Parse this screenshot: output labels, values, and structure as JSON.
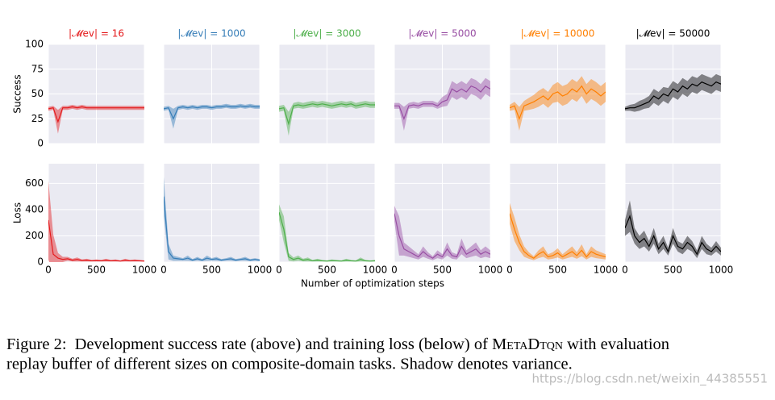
{
  "chart_data": [
    {
      "type": "line",
      "title": "|𝓜ev| = 16",
      "ylabel": "Success",
      "color": "#e41a1c",
      "xlim": [
        0,
        1000
      ],
      "xticks": [
        0,
        500,
        1000
      ],
      "ylim": [
        0,
        100
      ],
      "yticks": [
        0,
        25,
        50,
        75,
        100
      ],
      "x": [
        0,
        50,
        100,
        150,
        200,
        250,
        300,
        350,
        400,
        450,
        500,
        550,
        600,
        650,
        700,
        750,
        800,
        850,
        900,
        950,
        1000
      ],
      "values": [
        35,
        36,
        22,
        36,
        36,
        37,
        36,
        37,
        36,
        36,
        36,
        36,
        36,
        36,
        36,
        36,
        36,
        36,
        36,
        36,
        36
      ],
      "errors": [
        2,
        2,
        12,
        2,
        2,
        2,
        2,
        2,
        2,
        2,
        2,
        2,
        2,
        2,
        2,
        2,
        2,
        2,
        2,
        2,
        2
      ]
    },
    {
      "type": "line",
      "title": "|𝓜ev| = 1000",
      "color": "#377eb8",
      "xlim": [
        0,
        1000
      ],
      "xticks": [
        0,
        500,
        1000
      ],
      "ylim": [
        0,
        100
      ],
      "yticks": [
        0,
        25,
        50,
        75,
        100
      ],
      "x": [
        0,
        50,
        100,
        150,
        200,
        250,
        300,
        350,
        400,
        450,
        500,
        550,
        600,
        650,
        700,
        750,
        800,
        850,
        900,
        950,
        1000
      ],
      "values": [
        35,
        36,
        25,
        36,
        37,
        36,
        37,
        36,
        37,
        37,
        36,
        37,
        37,
        38,
        37,
        37,
        38,
        37,
        38,
        37,
        37
      ],
      "errors": [
        2,
        2,
        10,
        2,
        2,
        2,
        2,
        2,
        2,
        2,
        2,
        2,
        2,
        2,
        2,
        2,
        2,
        2,
        2,
        2,
        2
      ]
    },
    {
      "type": "line",
      "title": "|𝓜ev| = 3000",
      "color": "#4daf4a",
      "xlim": [
        0,
        1000
      ],
      "xticks": [
        0,
        500,
        1000
      ],
      "ylim": [
        0,
        100
      ],
      "yticks": [
        0,
        25,
        50,
        75,
        100
      ],
      "x": [
        0,
        50,
        100,
        150,
        200,
        250,
        300,
        350,
        400,
        450,
        500,
        550,
        600,
        650,
        700,
        750,
        800,
        850,
        900,
        950,
        1000
      ],
      "values": [
        35,
        36,
        20,
        38,
        39,
        38,
        39,
        40,
        39,
        40,
        39,
        38,
        39,
        40,
        39,
        40,
        38,
        39,
        40,
        39,
        39
      ],
      "errors": [
        3,
        3,
        12,
        3,
        3,
        3,
        3,
        3,
        3,
        3,
        3,
        3,
        3,
        3,
        3,
        3,
        3,
        3,
        3,
        3,
        3
      ]
    },
    {
      "type": "line",
      "title": "|𝓜ev| = 5000",
      "color": "#984ea3",
      "xlim": [
        0,
        1000
      ],
      "xticks": [
        0,
        500,
        1000
      ],
      "ylim": [
        0,
        100
      ],
      "yticks": [
        0,
        25,
        50,
        75,
        100
      ],
      "x": [
        0,
        50,
        100,
        150,
        200,
        250,
        300,
        350,
        400,
        450,
        500,
        550,
        600,
        650,
        700,
        750,
        800,
        850,
        900,
        950,
        1000
      ],
      "values": [
        38,
        38,
        25,
        38,
        39,
        38,
        40,
        40,
        40,
        38,
        42,
        44,
        55,
        52,
        55,
        52,
        58,
        56,
        52,
        58,
        55
      ],
      "errors": [
        3,
        3,
        12,
        3,
        3,
        3,
        3,
        3,
        3,
        3,
        5,
        6,
        8,
        8,
        8,
        8,
        8,
        8,
        8,
        8,
        8
      ]
    },
    {
      "type": "line",
      "title": "|𝓜ev| = 10000",
      "color": "#ff7f00",
      "xlim": [
        0,
        1000
      ],
      "xticks": [
        0,
        500,
        1000
      ],
      "ylim": [
        0,
        100
      ],
      "yticks": [
        0,
        25,
        50,
        75,
        100
      ],
      "x": [
        0,
        50,
        100,
        150,
        200,
        250,
        300,
        350,
        400,
        450,
        500,
        550,
        600,
        650,
        700,
        750,
        800,
        850,
        900,
        950,
        1000
      ],
      "values": [
        36,
        38,
        25,
        38,
        40,
        42,
        45,
        48,
        44,
        50,
        52,
        48,
        50,
        55,
        52,
        58,
        50,
        55,
        52,
        48,
        52
      ],
      "errors": [
        3,
        4,
        12,
        5,
        6,
        7,
        8,
        8,
        8,
        9,
        10,
        10,
        10,
        10,
        10,
        10,
        10,
        10,
        10,
        10,
        10
      ]
    },
    {
      "type": "line",
      "title": "|𝓜ev| = 50000",
      "color": "#000000",
      "xlim": [
        0,
        1000
      ],
      "xticks": [
        0,
        500,
        1000
      ],
      "ylim": [
        0,
        100
      ],
      "yticks": [
        0,
        25,
        50,
        75,
        100
      ],
      "x": [
        0,
        50,
        100,
        150,
        200,
        250,
        300,
        350,
        400,
        450,
        500,
        550,
        600,
        650,
        700,
        750,
        800,
        850,
        900,
        950,
        1000
      ],
      "values": [
        35,
        36,
        36,
        38,
        40,
        42,
        48,
        45,
        50,
        48,
        55,
        52,
        58,
        55,
        60,
        58,
        62,
        60,
        58,
        62,
        60
      ],
      "errors": [
        2,
        3,
        4,
        5,
        5,
        6,
        7,
        7,
        7,
        8,
        8,
        8,
        8,
        8,
        8,
        8,
        8,
        8,
        8,
        8,
        8
      ]
    },
    {
      "type": "line",
      "ylabel": "Loss",
      "color": "#e41a1c",
      "xlim": [
        0,
        1000
      ],
      "xticks": [
        0,
        500,
        1000
      ],
      "ylim": [
        0,
        750
      ],
      "yticks": [
        0,
        200,
        400,
        600
      ],
      "x": [
        0,
        50,
        100,
        150,
        200,
        250,
        300,
        350,
        400,
        450,
        500,
        550,
        600,
        650,
        700,
        750,
        800,
        850,
        900,
        950,
        1000
      ],
      "values": [
        320,
        60,
        30,
        20,
        25,
        15,
        20,
        12,
        15,
        10,
        12,
        10,
        15,
        10,
        12,
        8,
        15,
        10,
        12,
        10,
        8
      ],
      "errors": [
        300,
        150,
        40,
        20,
        15,
        10,
        15,
        8,
        10,
        6,
        8,
        6,
        10,
        6,
        8,
        5,
        10,
        6,
        8,
        6,
        5
      ]
    },
    {
      "type": "line",
      "color": "#377eb8",
      "xlim": [
        0,
        1000
      ],
      "xticks": [
        0,
        500,
        1000
      ],
      "ylim": [
        0,
        750
      ],
      "yticks": [
        0,
        200,
        400,
        600
      ],
      "x": [
        0,
        50,
        100,
        150,
        200,
        250,
        300,
        350,
        400,
        450,
        500,
        550,
        600,
        650,
        700,
        750,
        800,
        850,
        900,
        950,
        1000
      ],
      "values": [
        500,
        80,
        30,
        25,
        20,
        30,
        15,
        25,
        15,
        30,
        20,
        25,
        15,
        20,
        25,
        15,
        20,
        25,
        15,
        20,
        15
      ],
      "errors": [
        150,
        60,
        20,
        15,
        10,
        20,
        8,
        15,
        8,
        20,
        10,
        15,
        8,
        10,
        15,
        8,
        10,
        15,
        8,
        10,
        8
      ]
    },
    {
      "type": "line",
      "color": "#4daf4a",
      "xlim": [
        0,
        1000
      ],
      "xticks": [
        0,
        500,
        1000
      ],
      "ylim": [
        0,
        750
      ],
      "yticks": [
        0,
        200,
        400,
        600
      ],
      "x": [
        0,
        50,
        100,
        150,
        200,
        250,
        300,
        350,
        400,
        450,
        500,
        550,
        600,
        650,
        700,
        750,
        800,
        850,
        900,
        950,
        1000
      ],
      "values": [
        380,
        250,
        40,
        20,
        30,
        15,
        20,
        10,
        15,
        10,
        8,
        12,
        10,
        8,
        15,
        10,
        8,
        20,
        10,
        8,
        10
      ],
      "errors": [
        60,
        100,
        30,
        15,
        20,
        10,
        15,
        6,
        10,
        6,
        5,
        8,
        6,
        5,
        10,
        6,
        5,
        15,
        6,
        5,
        6
      ]
    },
    {
      "type": "line",
      "color": "#984ea3",
      "xlim": [
        0,
        1000
      ],
      "xticks": [
        0,
        500,
        1000
      ],
      "ylim": [
        0,
        750
      ],
      "yticks": [
        0,
        200,
        400,
        600
      ],
      "x": [
        0,
        50,
        100,
        150,
        200,
        250,
        300,
        350,
        400,
        450,
        500,
        550,
        600,
        650,
        700,
        750,
        800,
        850,
        900,
        950,
        1000
      ],
      "values": [
        370,
        200,
        100,
        80,
        60,
        40,
        80,
        50,
        30,
        60,
        40,
        100,
        50,
        40,
        120,
        60,
        80,
        100,
        60,
        80,
        60
      ],
      "errors": [
        60,
        150,
        50,
        40,
        30,
        20,
        40,
        25,
        15,
        30,
        20,
        50,
        25,
        20,
        60,
        30,
        40,
        50,
        30,
        40,
        30
      ]
    },
    {
      "type": "line",
      "color": "#ff7f00",
      "xlim": [
        0,
        1000
      ],
      "xticks": [
        0,
        500,
        1000
      ],
      "ylim": [
        0,
        750
      ],
      "yticks": [
        0,
        200,
        400,
        600
      ],
      "x": [
        0,
        50,
        100,
        150,
        200,
        250,
        300,
        350,
        400,
        450,
        500,
        550,
        600,
        650,
        700,
        750,
        800,
        850,
        900,
        950,
        1000
      ],
      "values": [
        370,
        250,
        150,
        80,
        50,
        30,
        60,
        80,
        40,
        50,
        70,
        40,
        60,
        80,
        50,
        90,
        40,
        80,
        60,
        50,
        40
      ],
      "errors": [
        80,
        90,
        60,
        40,
        25,
        15,
        30,
        40,
        20,
        25,
        35,
        20,
        30,
        40,
        25,
        45,
        20,
        40,
        30,
        25,
        20
      ]
    },
    {
      "type": "line",
      "color": "#000000",
      "xlim": [
        0,
        1000
      ],
      "xticks": [
        0,
        500,
        1000
      ],
      "ylim": [
        0,
        750
      ],
      "yticks": [
        0,
        200,
        400,
        600
      ],
      "x": [
        0,
        50,
        100,
        150,
        200,
        250,
        300,
        350,
        400,
        450,
        500,
        550,
        600,
        650,
        700,
        750,
        800,
        850,
        900,
        950,
        1000
      ],
      "values": [
        260,
        350,
        200,
        150,
        180,
        120,
        200,
        100,
        150,
        80,
        200,
        120,
        100,
        150,
        120,
        60,
        150,
        100,
        80,
        120,
        80
      ],
      "errors": [
        60,
        120,
        60,
        50,
        60,
        40,
        60,
        40,
        50,
        30,
        60,
        40,
        40,
        50,
        40,
        30,
        50,
        40,
        30,
        40,
        30
      ]
    }
  ],
  "xlabel": "Number of optimization steps",
  "caption": {
    "label": "Figure 2:",
    "line1a": "Development success rate (above) and training loss (below) of ",
    "name": "MetaDtqn",
    "line1b": " with evaluation",
    "line2": "replay buffer of different sizes on composite-domain tasks. Shadow denotes variance."
  },
  "watermark": "https://blog.csdn.net/weixin_44385551"
}
